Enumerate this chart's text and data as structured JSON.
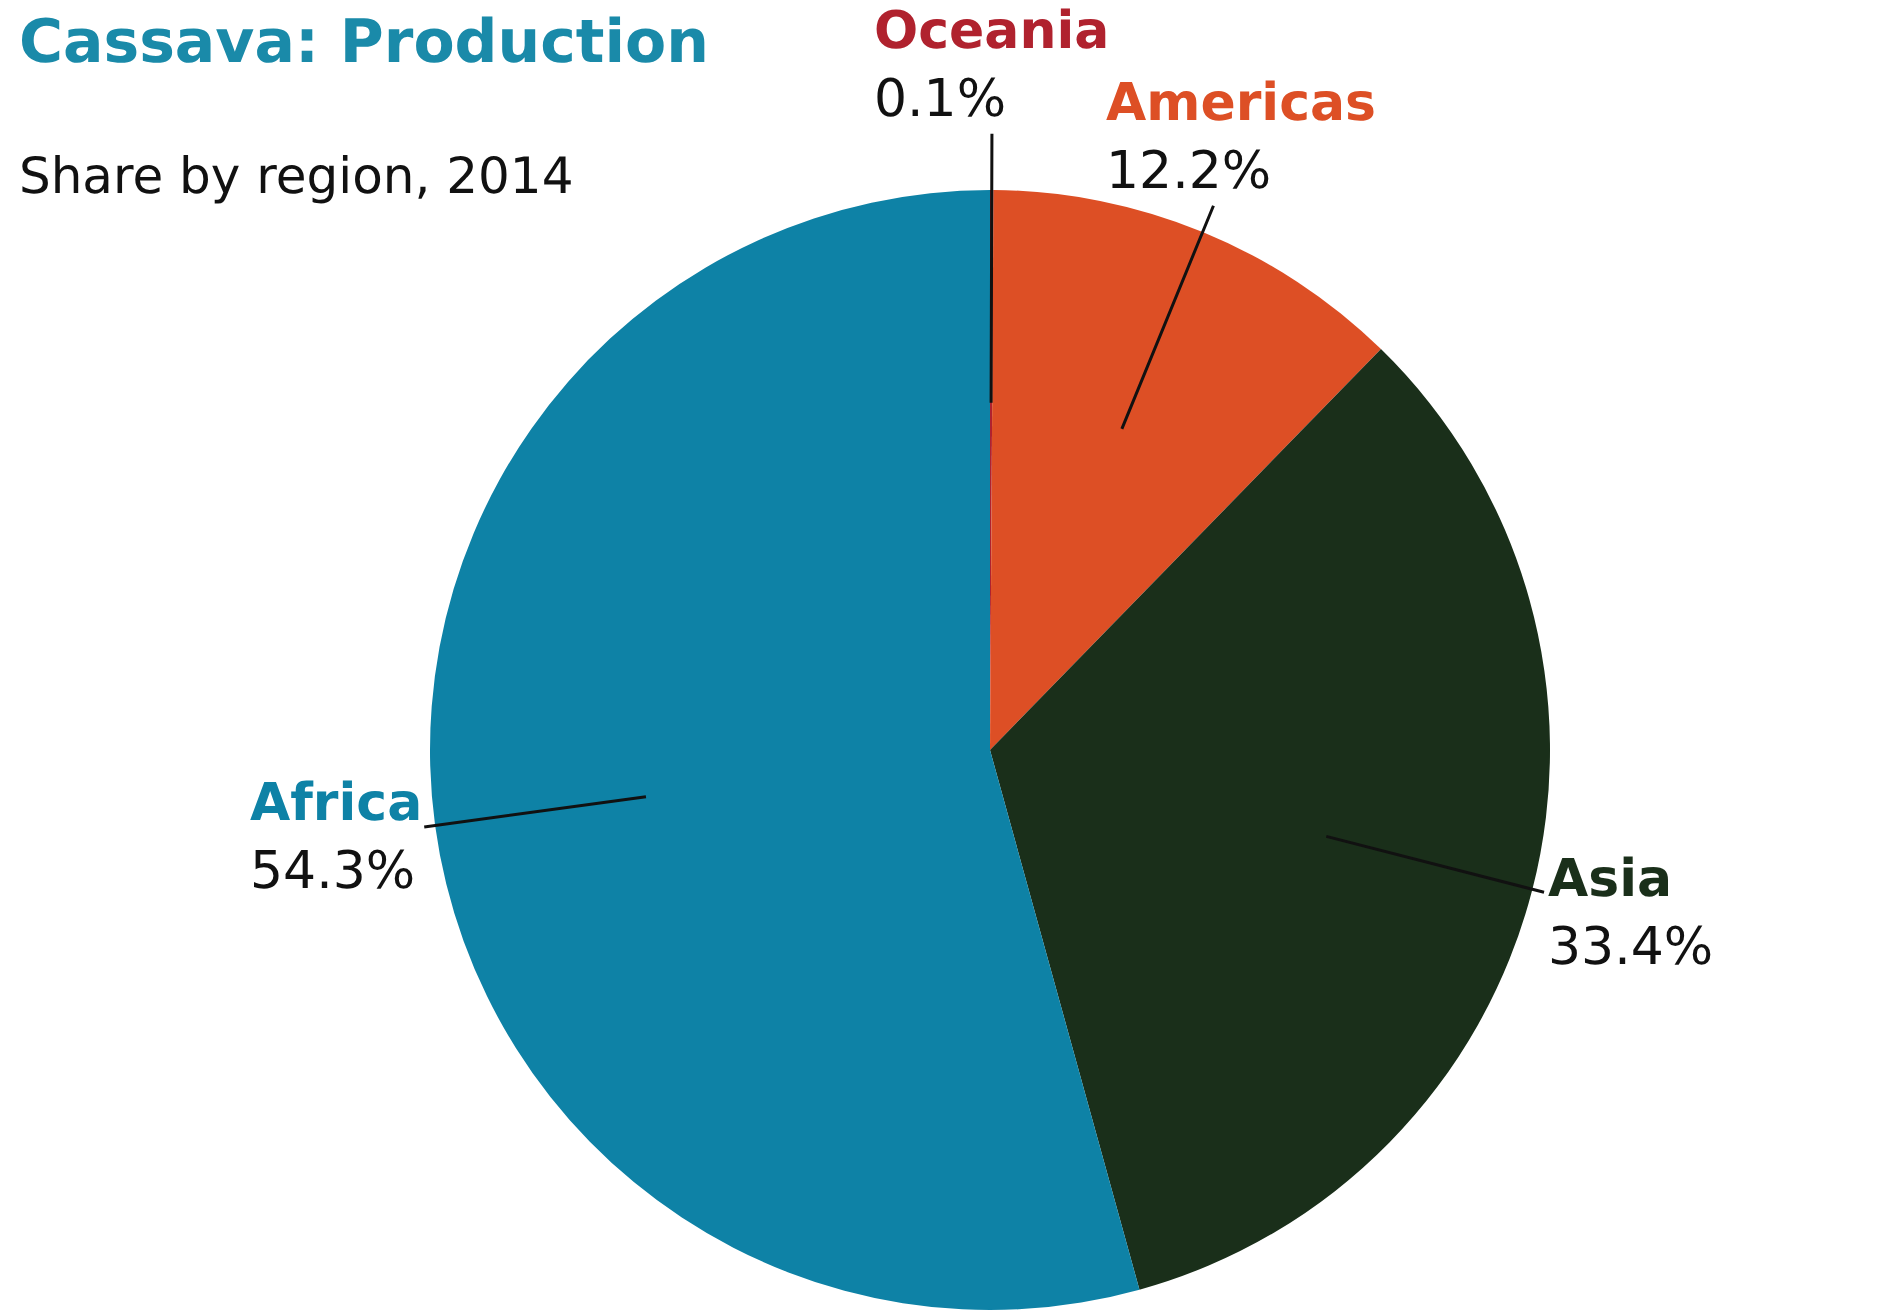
{
  "chart_data": {
    "type": "pie",
    "title": "Cassava: Production",
    "subtitle": "Share by region, 2014",
    "categories": [
      "Oceania",
      "Americas",
      "Asia",
      "Africa"
    ],
    "values": [
      0.1,
      12.2,
      33.4,
      54.3
    ],
    "colors": [
      "#b0222e",
      "#dd4f25",
      "#1a2f1a",
      "#0e82a6"
    ],
    "value_labels": [
      "0.1%",
      "12.2%",
      "33.4%",
      "54.3%"
    ],
    "legend": false
  }
}
